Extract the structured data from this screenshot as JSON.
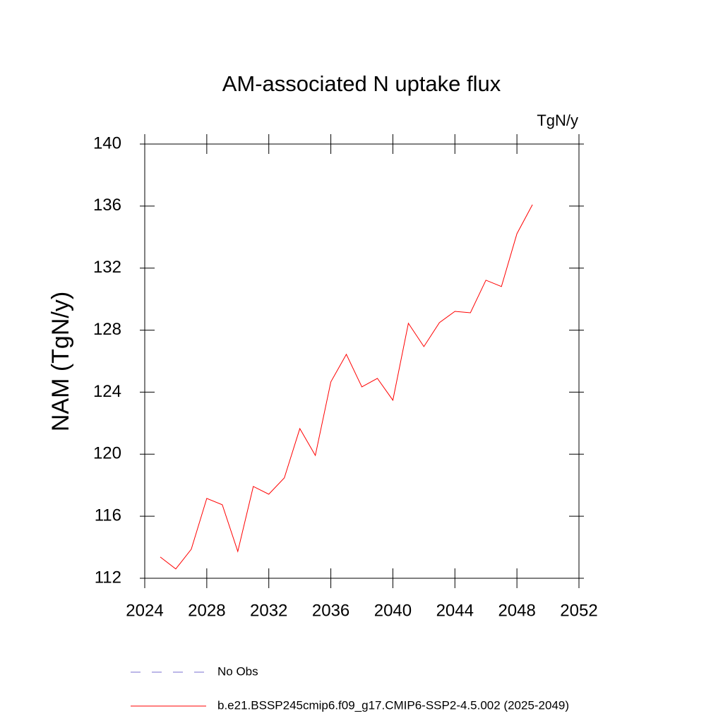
{
  "chart_data": {
    "type": "line",
    "title": "AM-associated N uptake flux",
    "units_label": "TgN/y",
    "y_label": "NAM  (TgN/y)",
    "x": [
      2025,
      2026,
      2027,
      2028,
      2029,
      2030,
      2031,
      2032,
      2033,
      2034,
      2035,
      2036,
      2037,
      2038,
      2039,
      2040,
      2041,
      2042,
      2043,
      2044,
      2045,
      2046,
      2047,
      2048,
      2049
    ],
    "series": [
      {
        "name": "No Obs",
        "color": "#7a6fd0",
        "dash": "dashed",
        "values": [
          null,
          null,
          null,
          null,
          null,
          null,
          null,
          null,
          null,
          null,
          null,
          null,
          null,
          null,
          null,
          null,
          null,
          null,
          null,
          null,
          null,
          null,
          null,
          null,
          null
        ]
      },
      {
        "name": "b.e21.BSSP245cmip6.f09_g17.CMIP6-SSP2-4.5.002 (2025-2049)",
        "color": "#ff0000",
        "dash": "solid",
        "values": [
          113.37,
          112.6,
          113.87,
          117.15,
          116.74,
          113.73,
          117.92,
          117.42,
          118.47,
          121.65,
          119.92,
          124.66,
          126.44,
          124.34,
          124.89,
          123.48,
          128.44,
          126.94,
          128.48,
          129.21,
          129.12,
          131.22,
          130.81,
          134.22,
          136.09
        ]
      }
    ],
    "xlim": [
      2024,
      2052
    ],
    "xticks": [
      2024,
      2028,
      2032,
      2036,
      2040,
      2044,
      2048,
      2052
    ],
    "ylim": [
      112,
      140
    ],
    "yticks": [
      112,
      116,
      120,
      124,
      128,
      132,
      136,
      140
    ]
  }
}
